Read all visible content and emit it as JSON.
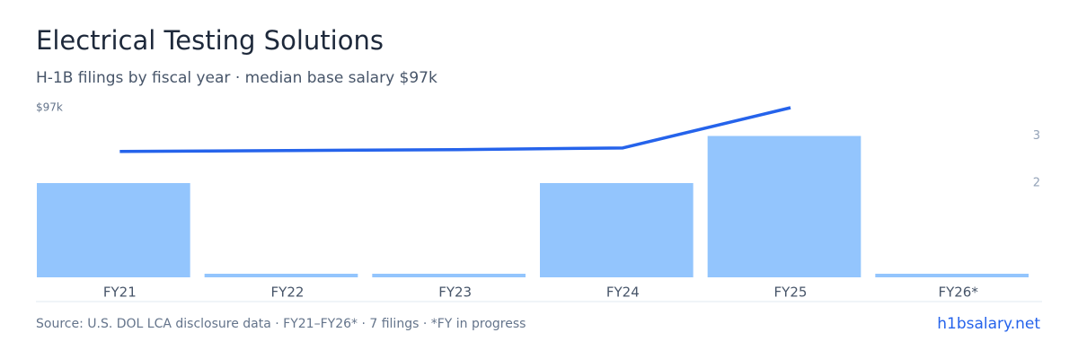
{
  "chart_data": {
    "type": "bar-line",
    "title": "Electrical Testing Solutions",
    "subtitle": "H-1B filings by fiscal year · median base salary $97k",
    "categories": [
      "FY21",
      "FY22",
      "FY23",
      "FY24",
      "FY25",
      "FY26*"
    ],
    "series": [
      {
        "name": "H-1B filings",
        "color": "#93c5fd",
        "axis": "y2",
        "values": [
          2,
          0,
          0,
          2,
          3,
          0
        ]
      },
      {
        "name": "Median base salary",
        "color": "#2563eb",
        "axis": "y",
        "values": [
          72000,
          72500,
          73000,
          74000,
          97000,
          null
        ]
      }
    ],
    "ylim": [
      0,
      97000
    ],
    "yticks": [
      {
        "value": 97000,
        "label": "$97k"
      }
    ],
    "y2lim": [
      0,
      3.6
    ],
    "y2ticks": [
      2,
      3
    ],
    "source": "Source: U.S. DOL LCA disclosure data · FY21–FY26* · 7 filings · *FY in progress",
    "brand": "h1bsalary.net"
  }
}
